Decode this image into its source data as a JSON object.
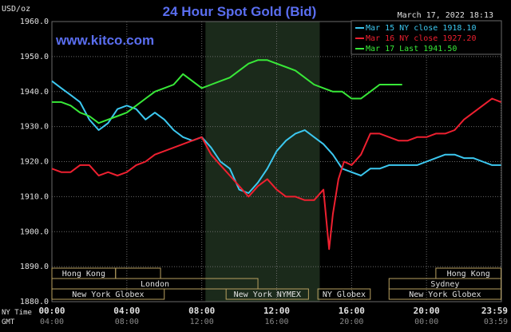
{
  "chart_data": {
    "type": "line",
    "title": "24 Hour Spot Gold (Bid)",
    "watermark": "www.kitco.com",
    "timestamp": "March 17, 2022 18:13",
    "ylabel": "USD/oz",
    "ylim": [
      1880,
      1960
    ],
    "yticks": [
      "1960.0",
      "1950.0",
      "1940.0",
      "1930.0",
      "1920.0",
      "1910.0",
      "1900.0",
      "1890.0",
      "1880.0"
    ],
    "xlim": [
      0,
      24
    ],
    "xticks_ny": [
      "00:00",
      "04:00",
      "08:00",
      "12:00",
      "16:00",
      "20:00",
      "23:59"
    ],
    "xticks_gmt": [
      "04:00",
      "08:00",
      "12:00",
      "16:00",
      "20:00",
      "00:00",
      "03:59"
    ],
    "x_row_labels": [
      "NY Time",
      "GMT"
    ],
    "grid": true,
    "legend_position": "top-right",
    "colors": {
      "background": "#000000",
      "title": "#5a6ef0",
      "watermark": "#5a6ef0",
      "axis_text": "#e0e0e0",
      "grid": "#6a6a6a",
      "session_shade": "#1b2a1b",
      "session_box": "#b8a060",
      "mar15": "#3cc8f0",
      "mar16": "#ee2030",
      "mar17": "#38e838"
    },
    "series": [
      {
        "name": "Mar 15 NY close 1918.10",
        "color": "#3cc8f0",
        "points": [
          [
            0,
            1943
          ],
          [
            0.5,
            1941
          ],
          [
            1,
            1939
          ],
          [
            1.5,
            1937
          ],
          [
            2,
            1932
          ],
          [
            2.5,
            1929
          ],
          [
            3,
            1931
          ],
          [
            3.5,
            1935
          ],
          [
            4,
            1936
          ],
          [
            4.5,
            1935
          ],
          [
            5,
            1932
          ],
          [
            5.5,
            1934
          ],
          [
            6,
            1932
          ],
          [
            6.5,
            1929
          ],
          [
            7,
            1927
          ],
          [
            7.5,
            1926
          ],
          [
            8,
            1927
          ],
          [
            8.5,
            1924
          ],
          [
            9,
            1920
          ],
          [
            9.5,
            1918
          ],
          [
            10,
            1912
          ],
          [
            10.5,
            1911
          ],
          [
            11,
            1914
          ],
          [
            11.5,
            1918
          ],
          [
            12,
            1923
          ],
          [
            12.5,
            1926
          ],
          [
            13,
            1928
          ],
          [
            13.5,
            1929
          ],
          [
            14,
            1927
          ],
          [
            14.5,
            1925
          ],
          [
            15,
            1922
          ],
          [
            15.5,
            1918
          ],
          [
            16,
            1917
          ],
          [
            16.5,
            1916
          ],
          [
            17,
            1918
          ],
          [
            17.5,
            1918
          ],
          [
            18,
            1919
          ],
          [
            18.5,
            1919
          ],
          [
            19,
            1919
          ],
          [
            19.5,
            1919
          ],
          [
            20,
            1920
          ],
          [
            20.5,
            1921
          ],
          [
            21,
            1922
          ],
          [
            21.5,
            1922
          ],
          [
            22,
            1921
          ],
          [
            22.5,
            1921
          ],
          [
            23,
            1920
          ],
          [
            23.5,
            1919
          ],
          [
            23.98,
            1919
          ]
        ]
      },
      {
        "name": "Mar 16 NY close 1927.20",
        "color": "#ee2030",
        "points": [
          [
            0,
            1918
          ],
          [
            0.5,
            1917
          ],
          [
            1,
            1917
          ],
          [
            1.5,
            1919
          ],
          [
            2,
            1919
          ],
          [
            2.5,
            1916
          ],
          [
            3,
            1917
          ],
          [
            3.5,
            1916
          ],
          [
            4,
            1917
          ],
          [
            4.5,
            1919
          ],
          [
            5,
            1920
          ],
          [
            5.5,
            1922
          ],
          [
            6,
            1923
          ],
          [
            6.5,
            1924
          ],
          [
            7,
            1925
          ],
          [
            7.5,
            1926
          ],
          [
            8,
            1927
          ],
          [
            8.5,
            1922
          ],
          [
            9,
            1919
          ],
          [
            9.5,
            1916
          ],
          [
            10,
            1913
          ],
          [
            10.5,
            1910
          ],
          [
            11,
            1913
          ],
          [
            11.5,
            1915
          ],
          [
            12,
            1912
          ],
          [
            12.5,
            1910
          ],
          [
            13,
            1910
          ],
          [
            13.5,
            1909
          ],
          [
            14,
            1909
          ],
          [
            14.5,
            1912
          ],
          [
            14.8,
            1895
          ],
          [
            15,
            1905
          ],
          [
            15.3,
            1915
          ],
          [
            15.6,
            1920
          ],
          [
            16,
            1919
          ],
          [
            16.5,
            1922
          ],
          [
            17,
            1928
          ],
          [
            17.5,
            1928
          ],
          [
            18,
            1927
          ],
          [
            18.5,
            1926
          ],
          [
            19,
            1926
          ],
          [
            19.5,
            1927
          ],
          [
            20,
            1927
          ],
          [
            20.5,
            1928
          ],
          [
            21,
            1928
          ],
          [
            21.5,
            1929
          ],
          [
            22,
            1932
          ],
          [
            22.5,
            1934
          ],
          [
            23,
            1936
          ],
          [
            23.5,
            1938
          ],
          [
            23.98,
            1937
          ]
        ]
      },
      {
        "name": "Mar 17 Last 1941.50",
        "color": "#38e838",
        "points": [
          [
            0,
            1937
          ],
          [
            0.5,
            1937
          ],
          [
            1,
            1936
          ],
          [
            1.5,
            1934
          ],
          [
            2,
            1933
          ],
          [
            2.5,
            1931
          ],
          [
            3,
            1932
          ],
          [
            3.5,
            1933
          ],
          [
            4,
            1934
          ],
          [
            4.5,
            1936
          ],
          [
            5,
            1938
          ],
          [
            5.5,
            1940
          ],
          [
            6,
            1941
          ],
          [
            6.5,
            1942
          ],
          [
            7,
            1945
          ],
          [
            7.5,
            1943
          ],
          [
            8,
            1941
          ],
          [
            8.5,
            1942
          ],
          [
            9,
            1943
          ],
          [
            9.5,
            1944
          ],
          [
            10,
            1946
          ],
          [
            10.5,
            1948
          ],
          [
            11,
            1949
          ],
          [
            11.5,
            1949
          ],
          [
            12,
            1948
          ],
          [
            12.5,
            1947
          ],
          [
            13,
            1946
          ],
          [
            13.5,
            1944
          ],
          [
            14,
            1942
          ],
          [
            14.5,
            1941
          ],
          [
            15,
            1940
          ],
          [
            15.5,
            1940
          ],
          [
            16,
            1938
          ],
          [
            16.5,
            1938
          ],
          [
            17,
            1940
          ],
          [
            17.5,
            1942
          ],
          [
            18,
            1942
          ],
          [
            18.5,
            1942
          ],
          [
            18.7,
            1942
          ]
        ]
      }
    ],
    "sessions": [
      {
        "label": "Hong Kong",
        "row": 0,
        "start": 0.0,
        "end": 3.4
      },
      {
        "label": "",
        "row": 0,
        "start": 3.4,
        "end": 5.8
      },
      {
        "label": "London",
        "row": 1,
        "start": 0.0,
        "end": 11.0
      },
      {
        "label": "New York Globex",
        "row": 2,
        "start": 0.0,
        "end": 6.0
      },
      {
        "label": "New York NYMEX",
        "row": 2,
        "start": 9.3,
        "end": 13.7
      },
      {
        "label": "NY Globex",
        "row": 2,
        "start": 14.2,
        "end": 17.0
      },
      {
        "label": "Hong Kong",
        "row": 0,
        "start": 20.5,
        "end": 23.98
      },
      {
        "label": "Sydney",
        "row": 1,
        "start": 18.0,
        "end": 23.98
      },
      {
        "label": "New York Globex",
        "row": 2,
        "start": 18.0,
        "end": 23.98
      }
    ],
    "shaded_session": [
      8.2,
      14.3
    ]
  }
}
